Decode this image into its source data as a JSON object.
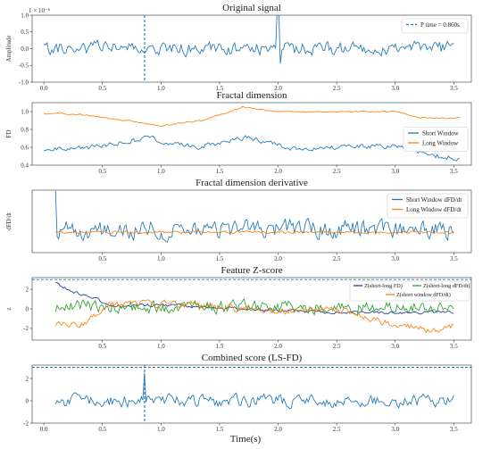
{
  "figure": {
    "xlabel": "Time(s)"
  },
  "colors": {
    "blue": "#1f77b4",
    "orange": "#ff7f0e",
    "green": "#2ca02c",
    "navy": "#1f3d99"
  },
  "chart_data": [
    {
      "type": "line",
      "title": "Original signal",
      "ylabel": "Amplitude",
      "y_multiplier": "1 × 10⁻⁶",
      "xlim": [
        -0.1,
        3.65
      ],
      "ylim": [
        -1.0,
        1.0
      ],
      "xticks": [
        "0.0",
        "0.5",
        "1.0",
        "1.5",
        "2.0",
        "2.5",
        "3.0",
        "3.5"
      ],
      "yticks": [
        "-1.0",
        "-0.5",
        "0.0",
        "0.5",
        "1.0"
      ],
      "legend_position": "top-right",
      "markers": [
        {
          "name": "P time = 0.860s",
          "x": 0.86,
          "style": "dashed",
          "orientation": "vertical"
        }
      ],
      "series": [
        {
          "name": "",
          "color": "blue",
          "x_start": 0.0,
          "x_end": 3.5,
          "amp": 0.32,
          "base": 0.0,
          "seed": 11,
          "spikes": [
            [
              2.0,
              1.15
            ],
            [
              2.02,
              -0.45
            ]
          ]
        }
      ]
    },
    {
      "type": "line",
      "title": "Fractal dimension",
      "ylabel": "FD",
      "xlim": [
        -0.1,
        3.65
      ],
      "ylim": [
        0.4,
        1.1
      ],
      "xticks": [
        "0.5",
        "1.0",
        "1.5",
        "2.0",
        "2.5",
        "3.0",
        "3.5"
      ],
      "yticks": [
        "0.4",
        "0.6",
        "0.8",
        "1.0"
      ],
      "legend_position": "center-right",
      "series": [
        {
          "name": "Short Window",
          "color": "blue",
          "x_start": 0.0,
          "x_end": 3.55,
          "amp": 0.045,
          "seed": 21,
          "levels": [
            [
              0.0,
              0.58
            ],
            [
              0.4,
              0.6
            ],
            [
              0.9,
              0.7
            ],
            [
              1.3,
              0.6
            ],
            [
              1.75,
              0.72
            ],
            [
              2.1,
              0.58
            ],
            [
              2.5,
              0.6
            ],
            [
              3.0,
              0.62
            ],
            [
              3.35,
              0.5
            ],
            [
              3.55,
              0.48
            ]
          ]
        },
        {
          "name": "Long Window",
          "color": "orange",
          "x_start": 0.0,
          "x_end": 3.55,
          "amp": 0.012,
          "seed": 22,
          "levels": [
            [
              0.0,
              0.98
            ],
            [
              0.3,
              0.97
            ],
            [
              0.6,
              0.92
            ],
            [
              1.0,
              0.84
            ],
            [
              1.35,
              0.9
            ],
            [
              1.7,
              1.05
            ],
            [
              2.0,
              1.0
            ],
            [
              2.5,
              1.0
            ],
            [
              3.0,
              1.0
            ],
            [
              3.2,
              0.93
            ],
            [
              3.55,
              0.93
            ]
          ]
        }
      ]
    },
    {
      "type": "line",
      "title": "Fractal dimension derivative",
      "ylabel": "dFD/dt",
      "xlim": [
        -0.1,
        3.65
      ],
      "ylim": [
        -5,
        9
      ],
      "xticks": [
        "0.5",
        "1.0",
        "1.5",
        "2.0",
        "2.5",
        "3.0",
        "3.5"
      ],
      "yticks": [],
      "legend_position": "top-right",
      "series": [
        {
          "name": "Short Window  dFD/dt",
          "color": "blue",
          "x_start": 0.1,
          "x_end": 3.5,
          "amp": 3.2,
          "base": 0.2,
          "seed": 31,
          "spikes": [
            [
              0.1,
              8.8
            ]
          ]
        },
        {
          "name": "Long Window  dFD/dt",
          "color": "orange",
          "x_start": 0.1,
          "x_end": 3.5,
          "amp": 0.5,
          "base": -0.4,
          "seed": 32
        }
      ]
    },
    {
      "type": "line",
      "title": "Feature Z-score",
      "ylabel": "z",
      "xlim": [
        -0.1,
        3.65
      ],
      "ylim": [
        -3.2,
        3.2
      ],
      "xticks": [
        "0.5",
        "1.0",
        "1.5",
        "2.0",
        "2.5",
        "3.0",
        "3.5"
      ],
      "yticks": [
        "-2",
        "0",
        "2"
      ],
      "legend_position": "top-right",
      "hlines": [
        3.0
      ],
      "series": [
        {
          "name": "Z(short-long  FD)",
          "color": "navy",
          "x_start": 0.1,
          "x_end": 3.5,
          "amp": 0.25,
          "seed": 41,
          "levels": [
            [
              0.1,
              2.6
            ],
            [
              0.25,
              1.8
            ],
            [
              0.6,
              0.3
            ],
            [
              1.0,
              0.4
            ],
            [
              1.5,
              0.1
            ],
            [
              2.0,
              -0.2
            ],
            [
              2.5,
              -0.3
            ],
            [
              3.0,
              -0.4
            ],
            [
              3.5,
              -0.3
            ]
          ]
        },
        {
          "name": "Z(short-long  dFD/dt)",
          "color": "green",
          "x_start": 0.1,
          "x_end": 3.5,
          "amp": 1.0,
          "base": 0.2,
          "seed": 42
        },
        {
          "name": "Z(short window  dFD/dt)",
          "color": "orange",
          "x_start": 0.1,
          "x_end": 3.5,
          "amp": 0.55,
          "seed": 43,
          "levels": [
            [
              0.1,
              -1.6
            ],
            [
              0.3,
              -1.8
            ],
            [
              0.55,
              0.4
            ],
            [
              1.0,
              0.6
            ],
            [
              1.5,
              0.2
            ],
            [
              2.0,
              -0.2
            ],
            [
              2.5,
              -0.1
            ],
            [
              3.0,
              -1.6
            ],
            [
              3.3,
              -2.2
            ],
            [
              3.5,
              -1.8
            ]
          ]
        }
      ]
    },
    {
      "type": "line",
      "title": "Combined score (LS-FD)",
      "ylabel": "",
      "xlim": [
        -0.1,
        3.65
      ],
      "ylim": [
        -2.0,
        3.2
      ],
      "xticks": [
        "0.0",
        "0.5",
        "1.0",
        "1.5",
        "2.0",
        "2.5",
        "3.0",
        "3.5"
      ],
      "yticks": [
        "-2",
        "0",
        "2"
      ],
      "hlines": [
        3.0
      ],
      "markers": [
        {
          "name": "",
          "x": 0.86,
          "style": "dashed",
          "orientation": "vertical"
        }
      ],
      "series": [
        {
          "name": "",
          "color": "blue",
          "x_start": 0.1,
          "x_end": 3.5,
          "amp": 0.85,
          "base": 0.0,
          "seed": 51,
          "spikes": [
            [
              0.86,
              2.5
            ]
          ]
        }
      ]
    }
  ]
}
